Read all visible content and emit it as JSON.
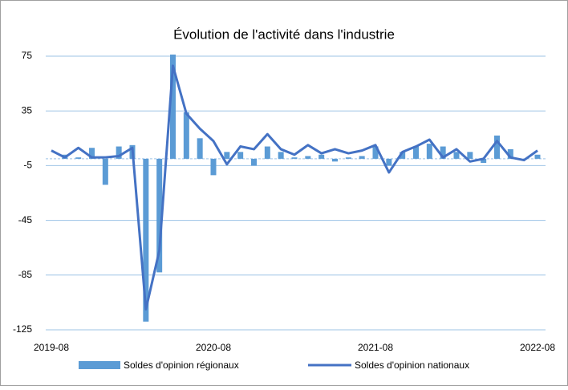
{
  "chart_data": {
    "type": "bar-line",
    "title": "Évolution de l'activité dans l'industrie",
    "categories": [
      "2019-08",
      null,
      null,
      null,
      null,
      null,
      null,
      null,
      null,
      null,
      null,
      null,
      "2020-08",
      null,
      null,
      null,
      null,
      null,
      null,
      null,
      null,
      null,
      null,
      null,
      "2021-08",
      null,
      null,
      null,
      null,
      null,
      null,
      null,
      null,
      null,
      null,
      null,
      "2022-08"
    ],
    "series": [
      {
        "name": "Soldes d'opinion régionaux",
        "type": "bar",
        "color": "#5b9bd5",
        "values": [
          0,
          3,
          1,
          8,
          -19,
          9,
          10,
          -119,
          -83,
          77,
          34,
          15,
          -12,
          5,
          5,
          -5,
          9,
          5,
          1,
          2,
          3,
          -2,
          1,
          2,
          9,
          -5,
          5,
          9,
          11,
          9,
          5,
          5,
          -3,
          17,
          7,
          0,
          3
        ]
      },
      {
        "name": "Soldes d'opinion nationaux",
        "type": "line",
        "color": "#4472c4",
        "values": [
          6,
          1,
          8,
          1,
          1,
          2,
          8,
          -110,
          -67,
          68,
          33,
          22,
          13,
          -4,
          9,
          7,
          18,
          7,
          3,
          10,
          4,
          7,
          4,
          6,
          10,
          -10,
          5,
          9,
          14,
          1,
          7,
          -2,
          0,
          13,
          1,
          -1,
          6
        ]
      }
    ],
    "ylim": [
      -125,
      75
    ],
    "yticks": [
      75,
      35,
      -5,
      -45,
      -85,
      -125
    ],
    "grid": true
  }
}
